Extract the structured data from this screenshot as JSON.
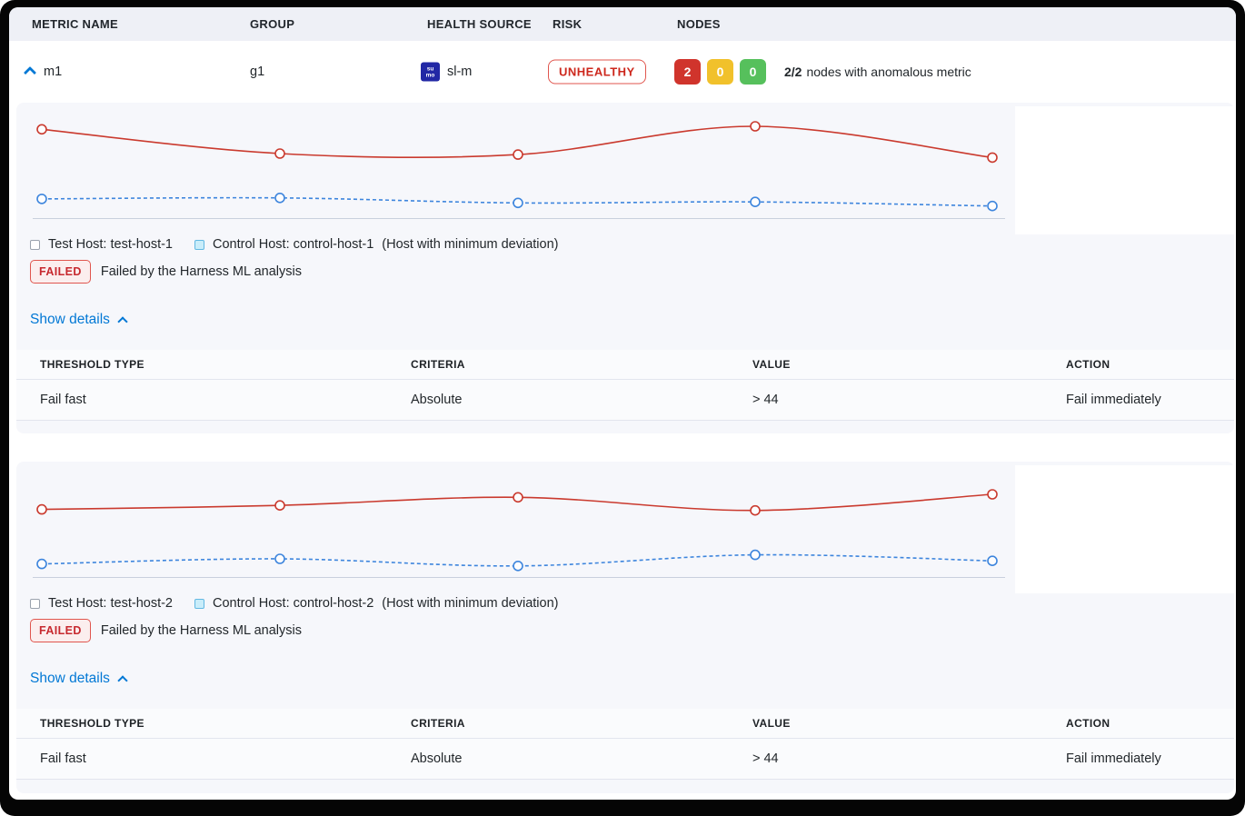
{
  "colors": {
    "accent_blue": "#0278d5",
    "test_line_red": "#ca3a2e",
    "control_line_blue": "#3d85dd",
    "risk_red": "#cd271c",
    "failed_text_red": "#c7292f",
    "node_red": "#d0342c",
    "node_yellow": "#f1c12b",
    "node_green": "#56c05c",
    "panel_bg": "#f6f7fb",
    "column_header_bg": "#eef0f6"
  },
  "header": {
    "columns": [
      "METRIC NAME",
      "GROUP",
      "HEALTH SOURCE",
      "RISK",
      "NODES"
    ]
  },
  "metric_row": {
    "metric_name": "m1",
    "group": "g1",
    "health_source": {
      "label": "sl-m",
      "icon_text_top": "su",
      "icon_text_bottom": "mo"
    },
    "risk_label": "UNHEALTHY",
    "nodes": {
      "counts": [
        {
          "value": "2",
          "color": "#d0342c"
        },
        {
          "value": "0",
          "color": "#f1c12b"
        },
        {
          "value": "0",
          "color": "#56c05c"
        }
      ],
      "summary_bold": "2/2",
      "summary_text": "nodes with anomalous metric"
    }
  },
  "sections": [
    {
      "test_host_label": "Test Host: test-host-1",
      "control_host_label": "Control Host: control-host-1",
      "deviation_note": "(Host with minimum deviation)",
      "status_label": "FAILED",
      "status_text": "Failed by the Harness ML analysis",
      "details_label": "Show details",
      "table": {
        "headers": [
          "THRESHOLD TYPE",
          "CRITERIA",
          "VALUE",
          "ACTION"
        ],
        "rows": [
          [
            "Fail fast",
            "Absolute",
            "> 44",
            "Fail immediately"
          ]
        ]
      }
    },
    {
      "test_host_label": "Test Host: test-host-2",
      "control_host_label": "Control Host: control-host-2",
      "deviation_note": "(Host with minimum deviation)",
      "status_label": "FAILED",
      "status_text": "Failed by the Harness ML analysis",
      "details_label": "Show details",
      "table": {
        "headers": [
          "THRESHOLD TYPE",
          "CRITERIA",
          "VALUE",
          "ACTION"
        ],
        "rows": [
          [
            "Fail fast",
            "Absolute",
            "> 44",
            "Fail immediately"
          ]
        ]
      }
    }
  ],
  "chart_data": [
    {
      "type": "line",
      "title": "",
      "x": [
        1,
        2,
        3,
        4,
        5
      ],
      "series": [
        {
          "name": "Test Host: test-host-1",
          "style": "solid",
          "color": "#ca3a2e",
          "values": [
            88,
            64,
            63,
            91,
            60
          ]
        },
        {
          "name": "Control Host: control-host-1",
          "style": "dashed",
          "color": "#3d85dd",
          "values": [
            19,
            20,
            15,
            16,
            12
          ]
        }
      ],
      "ylim": [
        0,
        100
      ],
      "grid": false,
      "axis_labels": "none shown",
      "legend_position": "below",
      "value_scale": "relative units estimated from pixel positions (chart has no visible axis ticks)"
    },
    {
      "type": "line",
      "title": "",
      "x": [
        1,
        2,
        3,
        4,
        5
      ],
      "series": [
        {
          "name": "Test Host: test-host-2",
          "style": "solid",
          "color": "#ca3a2e",
          "values": [
            67,
            71,
            79,
            66,
            82
          ]
        },
        {
          "name": "Control Host: control-host-2",
          "style": "dashed",
          "color": "#3d85dd",
          "values": [
            13,
            18,
            11,
            22,
            16
          ]
        }
      ],
      "ylim": [
        0,
        100
      ],
      "grid": false,
      "axis_labels": "none shown",
      "legend_position": "below",
      "value_scale": "relative units estimated from pixel positions (chart has no visible axis ticks)"
    }
  ]
}
